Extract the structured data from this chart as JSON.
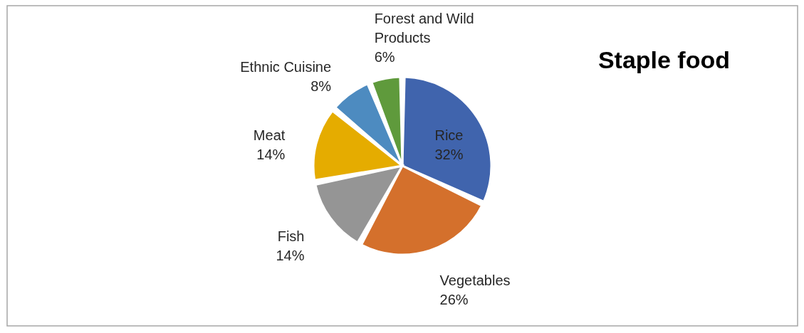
{
  "chart_data": {
    "type": "pie",
    "title": "Staple food",
    "categories": [
      "Rice",
      "Vegetables",
      "Fish",
      "Meat",
      "Ethnic Cuisine",
      "Forest and Wild Products"
    ],
    "values": [
      32,
      26,
      14,
      14,
      8,
      6
    ],
    "value_labels": [
      "32%",
      "26%",
      "14%",
      "14%",
      "8%",
      "6%"
    ],
    "colors": [
      "#4064ad",
      "#d4702c",
      "#959595",
      "#e5ac00",
      "#4d8bc0",
      "#5f9a3c"
    ],
    "legend": false
  }
}
